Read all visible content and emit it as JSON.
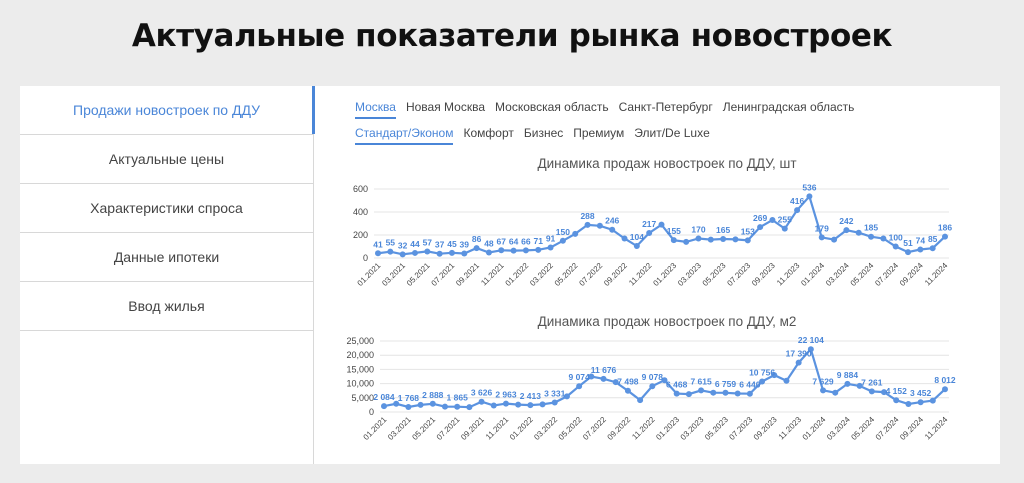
{
  "header": {
    "title": "Актуальные показатели рынка новостроек"
  },
  "sidebar": {
    "items": [
      {
        "label": "Продажи новостроек по ДДУ",
        "active": true
      },
      {
        "label": "Актуальные цены",
        "active": false
      },
      {
        "label": "Характеристики спроса",
        "active": false
      },
      {
        "label": "Данные ипотеки",
        "active": false
      },
      {
        "label": "Ввод жилья",
        "active": false
      }
    ]
  },
  "region_tabs": [
    {
      "label": "Москва",
      "active": true
    },
    {
      "label": "Новая Москва",
      "active": false
    },
    {
      "label": "Московская область",
      "active": false
    },
    {
      "label": "Санкт-Петербург",
      "active": false
    },
    {
      "label": "Ленинградская область",
      "active": false
    }
  ],
  "class_tabs": [
    {
      "label": "Стандарт/Эконом",
      "active": true
    },
    {
      "label": "Комфорт",
      "active": false
    },
    {
      "label": "Бизнес",
      "active": false
    },
    {
      "label": "Премиум",
      "active": false
    },
    {
      "label": "Элит/De Luxe",
      "active": false
    }
  ],
  "colors": {
    "accent": "#4a86d8",
    "line": "#5b93e0",
    "grid": "#e4e4e4"
  },
  "chart_data": [
    {
      "type": "line",
      "title": "Динамика продаж новостроек по ДДУ, шт",
      "x": [
        "01.2021",
        "02.2021",
        "03.2021",
        "04.2021",
        "05.2021",
        "06.2021",
        "07.2021",
        "08.2021",
        "09.2021",
        "10.2021",
        "11.2021",
        "12.2021",
        "01.2022",
        "02.2022",
        "03.2022",
        "04.2022",
        "05.2022",
        "06.2022",
        "07.2022",
        "08.2022",
        "09.2022",
        "10.2022",
        "11.2022",
        "12.2022",
        "01.2023",
        "02.2023",
        "03.2023",
        "04.2023",
        "05.2023",
        "06.2023",
        "07.2023",
        "08.2023",
        "09.2023",
        "10.2023",
        "11.2023",
        "12.2023",
        "01.2024",
        "02.2024",
        "03.2024",
        "04.2024",
        "05.2024",
        "06.2024",
        "07.2024",
        "08.2024",
        "09.2024",
        "10.2024",
        "11.2024"
      ],
      "tick_labels": [
        "01.2021",
        "03.2021",
        "05.2021",
        "07.2021",
        "09.2021",
        "11.2021",
        "01.2022",
        "03.2022",
        "05.2022",
        "07.2022",
        "09.2022",
        "11.2022",
        "01.2023",
        "03.2023",
        "05.2023",
        "07.2023",
        "09.2023",
        "11.2023",
        "01.2024",
        "03.2024",
        "05.2024",
        "07.2024",
        "09.2024",
        "11.2024"
      ],
      "values": [
        41,
        55,
        32,
        44,
        57,
        37,
        45,
        39,
        86,
        48,
        67,
        64,
        66,
        71,
        91,
        150,
        210,
        288,
        280,
        246,
        170,
        104,
        217,
        290,
        155,
        140,
        170,
        160,
        165,
        162,
        153,
        269,
        330,
        255,
        416,
        536,
        179,
        160,
        242,
        220,
        185,
        170,
        100,
        51,
        74,
        85,
        186
      ],
      "labels": [
        "41",
        "55",
        "32",
        "44",
        "57",
        "37",
        "45",
        "39",
        "86",
        "48",
        "67",
        "64",
        "66",
        "71",
        "91",
        "150",
        "",
        "288",
        "",
        "246",
        "",
        "104",
        "217",
        "",
        "155",
        "",
        "170",
        "",
        "165",
        "",
        "153",
        "269",
        "",
        "255",
        "416",
        "536",
        "179",
        "",
        "242",
        "",
        "185",
        "",
        "100",
        "51",
        "74",
        "85",
        "186"
      ],
      "yticks": [
        "0",
        "200",
        "400",
        "600"
      ],
      "ylim": [
        0,
        600
      ]
    },
    {
      "type": "line",
      "title": "Динамика продаж новостроек по ДДУ, м2",
      "x": [
        "01.2021",
        "02.2021",
        "03.2021",
        "04.2021",
        "05.2021",
        "06.2021",
        "07.2021",
        "08.2021",
        "09.2021",
        "10.2021",
        "11.2021",
        "12.2021",
        "01.2022",
        "02.2022",
        "03.2022",
        "04.2022",
        "05.2022",
        "06.2022",
        "07.2022",
        "08.2022",
        "09.2022",
        "10.2022",
        "11.2022",
        "12.2022",
        "01.2023",
        "02.2023",
        "03.2023",
        "04.2023",
        "05.2023",
        "06.2023",
        "07.2023",
        "08.2023",
        "09.2023",
        "10.2023",
        "11.2023",
        "12.2023",
        "01.2024",
        "02.2024",
        "03.2024",
        "04.2024",
        "05.2024",
        "06.2024",
        "07.2024",
        "08.2024",
        "09.2024",
        "10.2024",
        "11.2024"
      ],
      "tick_labels": [
        "01.2021",
        "03.2021",
        "05.2021",
        "07.2021",
        "09.2021",
        "11.2021",
        "01.2022",
        "03.2022",
        "05.2022",
        "07.2022",
        "09.2022",
        "11.2022",
        "01.2023",
        "03.2023",
        "05.2023",
        "07.2023",
        "09.2023",
        "11.2023",
        "01.2024",
        "03.2024",
        "05.2024",
        "07.2024",
        "09.2024",
        "11.2024"
      ],
      "values": [
        2084,
        2900,
        1768,
        2500,
        2888,
        1900,
        1865,
        1700,
        3626,
        2300,
        2963,
        2600,
        2413,
        2700,
        3331,
        5500,
        9074,
        12500,
        11676,
        10500,
        7498,
        4200,
        9078,
        11200,
        6468,
        6300,
        7615,
        6800,
        6759,
        6500,
        6440,
        10756,
        13000,
        11000,
        17390,
        22104,
        7629,
        6800,
        9884,
        9200,
        7261,
        7000,
        4152,
        2800,
        3452,
        4000,
        8012
      ],
      "labels": [
        "2 084",
        "",
        "1 768",
        "",
        "2 888",
        "",
        "1 865",
        "",
        "3 626",
        "",
        "2 963",
        "",
        "2 413",
        "",
        "3 331",
        "",
        "9 074",
        "",
        "11 676",
        "",
        "7 498",
        "",
        "9 078",
        "",
        "6 468",
        "",
        "7 615",
        "",
        "6 759",
        "",
        "6 440",
        "10 756",
        "",
        "",
        "17 390",
        "22 104",
        "7 629",
        "",
        "9 884",
        "",
        "7 261",
        "",
        "4 152",
        "",
        "3 452",
        "",
        "8 012"
      ],
      "yticks": [
        "0",
        "5,000",
        "10,000",
        "15,000",
        "20,000",
        "25,000"
      ],
      "ylim": [
        0,
        25000
      ]
    }
  ]
}
